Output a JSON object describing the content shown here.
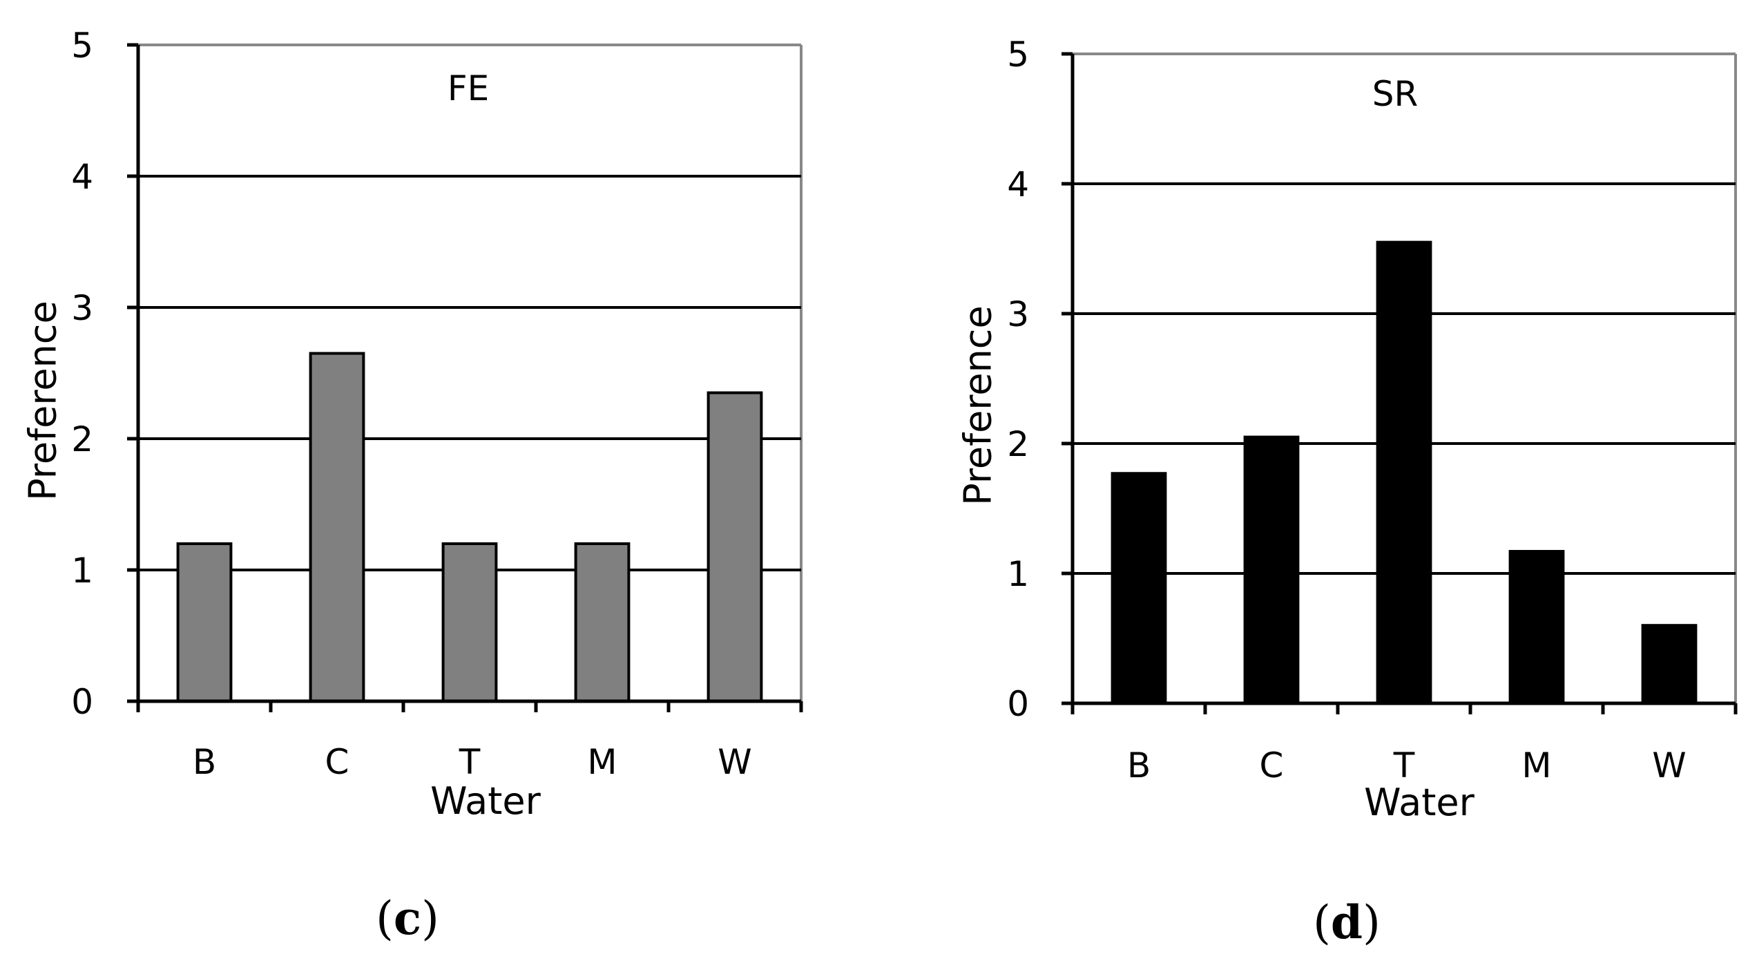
{
  "chart_data": [
    {
      "type": "bar",
      "title": "FE",
      "panel_open": "(",
      "panel_letter": "c",
      "panel_close": ")",
      "xlabel": "Water",
      "ylabel": "Preference",
      "categories": [
        "B",
        "C",
        "T",
        "M",
        "W"
      ],
      "values": [
        1.2,
        2.65,
        1.2,
        1.2,
        2.35
      ],
      "ylim": [
        0,
        5
      ],
      "yticks": [
        0,
        1,
        2,
        3,
        4,
        5
      ],
      "grid": true,
      "bar_color": "#808080"
    },
    {
      "type": "bar",
      "title": "SR",
      "panel_open": "(",
      "panel_letter": "d",
      "panel_close": ")",
      "xlabel": "Water",
      "ylabel": "Preference",
      "categories": [
        "B",
        "C",
        "T",
        "M",
        "W"
      ],
      "values": [
        1.77,
        2.05,
        3.55,
        1.17,
        0.6
      ],
      "ylim": [
        0,
        5
      ],
      "yticks": [
        0,
        1,
        2,
        3,
        4,
        5
      ],
      "grid": true,
      "bar_color": "#000000"
    }
  ]
}
